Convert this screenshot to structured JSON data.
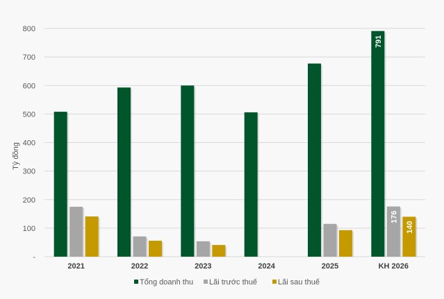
{
  "chart_data": {
    "type": "bar",
    "title": "",
    "xlabel": "",
    "ylabel": "Tỷ đồng",
    "ylim": [
      0,
      800
    ],
    "yticks": [
      0,
      100,
      200,
      300,
      400,
      500,
      600,
      700,
      800
    ],
    "ytick_labels": [
      "-",
      "100",
      "200",
      "300",
      "400",
      "500",
      "600",
      "700",
      "800"
    ],
    "grid": true,
    "legend_position": "bottom",
    "categories": [
      "2021",
      "2022",
      "2023",
      "2024",
      "2025",
      "KH 2026"
    ],
    "series": [
      {
        "name": "Tổng doanh thu",
        "color": "#00552a",
        "values": [
          508,
          593,
          600,
          506,
          677,
          791
        ]
      },
      {
        "name": "Lãi trước thuế",
        "color": "#a6a6a6",
        "values": [
          175,
          71,
          54,
          null,
          115,
          176
        ]
      },
      {
        "name": "Lãi sau thuế",
        "color": "#c59a00",
        "values": [
          141,
          56,
          41,
          null,
          93,
          140
        ]
      }
    ],
    "data_labels": [
      {
        "series": 0,
        "category": 5,
        "text": "791"
      },
      {
        "series": 1,
        "category": 5,
        "text": "176"
      },
      {
        "series": 2,
        "category": 5,
        "text": "140"
      }
    ]
  }
}
